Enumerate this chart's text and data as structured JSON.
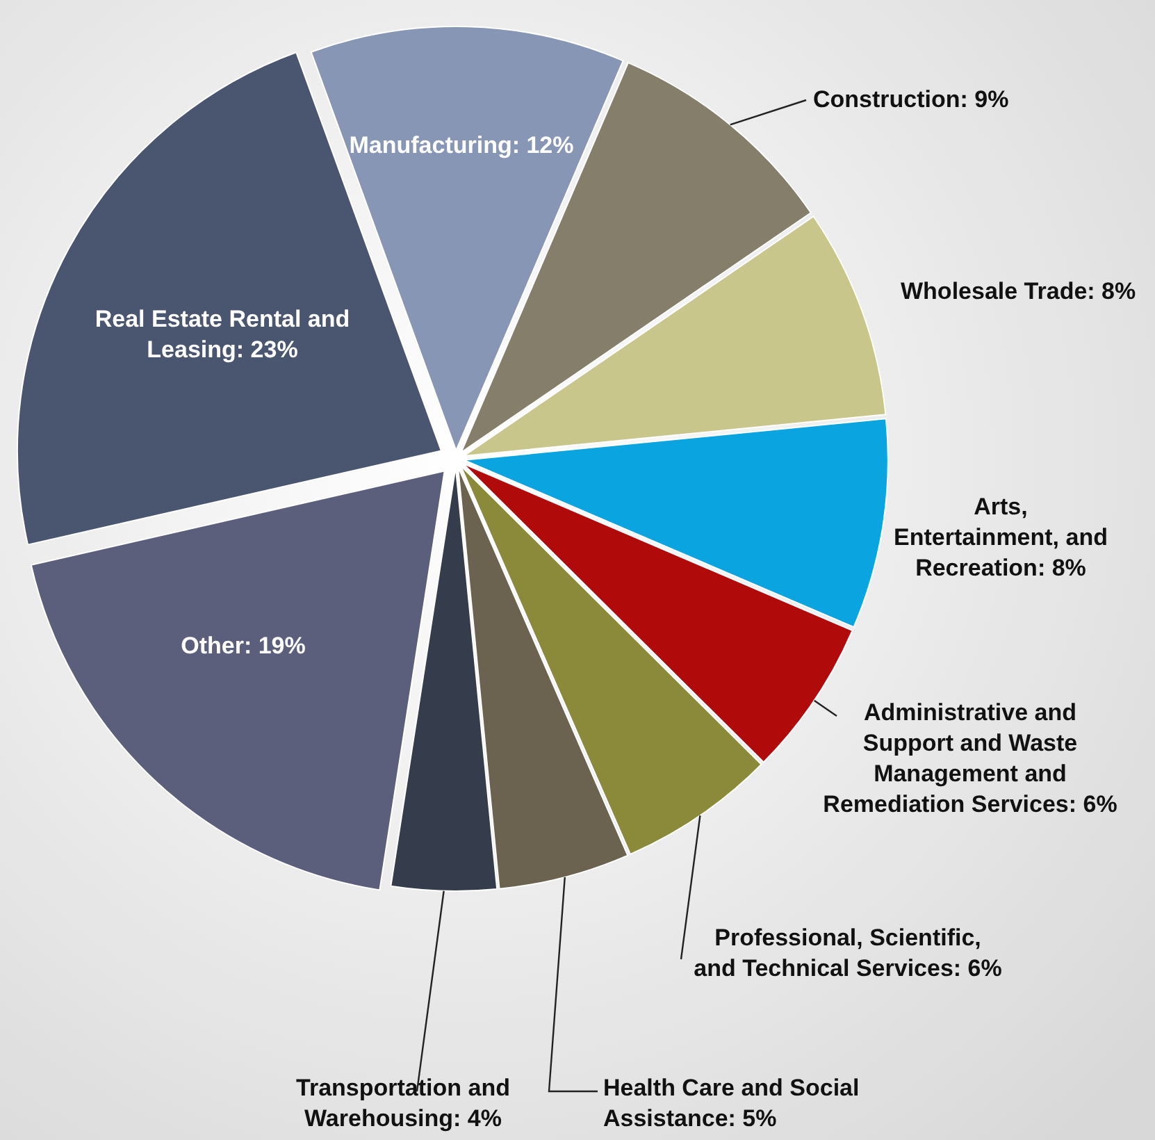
{
  "chart_data": {
    "type": "pie",
    "categories": [
      "Manufacturing",
      "Construction",
      "Wholesale Trade",
      "Arts, Entertainment, and Recreation",
      "Administrative and Support and Waste Management and Remediation Services",
      "Professional, Scientific, and Technical Services",
      "Health Care and Social Assistance",
      "Transportation and Warehousing",
      "Other",
      "Real Estate Rental and Leasing"
    ],
    "values": [
      12,
      9,
      8,
      8,
      6,
      6,
      5,
      4,
      19,
      23
    ],
    "value_labels": [
      "12%",
      "9%",
      "8%",
      "8%",
      "6%",
      "6%",
      "5%",
      "4%",
      "19%",
      "23%"
    ],
    "colors": [
      "#8796b4",
      "#857e6a",
      "#c9c68c",
      "#0aa5e0",
      "#b00a0a",
      "#8a8a3a",
      "#6b6250",
      "#353c4c",
      "#5c5f7c",
      "#4a5570"
    ]
  }
}
